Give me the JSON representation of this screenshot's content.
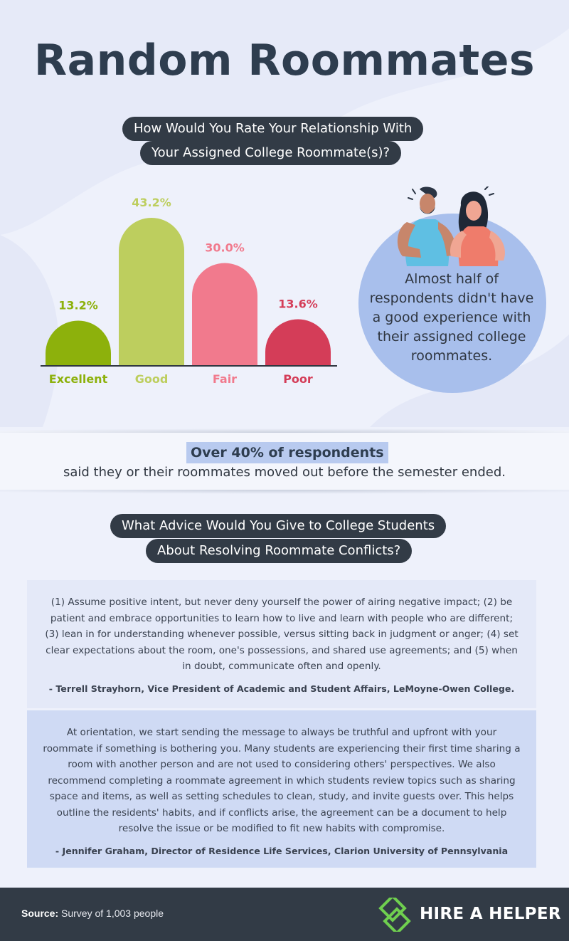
{
  "title": "Random Roommates",
  "chart_data": {
    "type": "bar",
    "title_lines": [
      "How Would You Rate Your Relationship With",
      "Your Assigned College Roommate(s)?"
    ],
    "categories": [
      "Excellent",
      "Good",
      "Fair",
      "Poor"
    ],
    "values": [
      13.2,
      43.2,
      30.0,
      13.6
    ],
    "value_labels": [
      "13.2%",
      "43.2%",
      "30.0%",
      "13.6%"
    ],
    "colors": [
      "#8db10c",
      "#bdce5e",
      "#f17a8d",
      "#d43d58"
    ],
    "ylim": [
      0,
      43.2
    ],
    "grid": false,
    "legend": "none"
  },
  "callout": {
    "text": "Almost half of respondents didn't have a good experience with their assigned college roommates.",
    "illustration": "two-roommates-illustration"
  },
  "stat": {
    "highlight": "Over 40% of respondents",
    "text": "said they or their roommates moved out before the semester ended."
  },
  "advice": {
    "title_lines": [
      "What Advice Would You Give to College Students",
      "About Resolving Roommate Conflicts?"
    ],
    "quotes": [
      {
        "text": "(1) Assume positive intent, but never deny yourself the power of airing negative impact; (2) be patient and embrace opportunities to learn how to live and learn with people who are different; (3) lean in for understanding whenever possible, versus sitting back in judgment or anger; (4) set clear expectations about the room, one's possessions, and shared use agreements; and (5) when in doubt, communicate often and openly.",
        "attribution": "- Terrell Strayhorn, Vice President of Academic and Student Affairs, LeMoyne-Owen College."
      },
      {
        "text": "At orientation, we start sending the message to always be truthful and upfront with your roommate if something is bothering you. Many students are experiencing their first time sharing a room with another person and are not used to considering others' perspectives. We also recommend completing a roommate agreement in which students review topics such as sharing space and items, as well as setting schedules to clean, study, and invite guests over. This helps outline the residents' habits, and if conflicts arise, the agreement can be a document to help resolve the issue or be modified to fit new habits with compromise.",
        "attribution": "- Jennifer Graham, Director of Residence Life Services, Clarion University of Pennsylvania"
      }
    ]
  },
  "footer": {
    "source_label": "Source:",
    "source_text": "Survey of 1,003 people",
    "brand": "HIRE A HELPER",
    "brand_icon": "hire-a-helper-logo-icon"
  }
}
